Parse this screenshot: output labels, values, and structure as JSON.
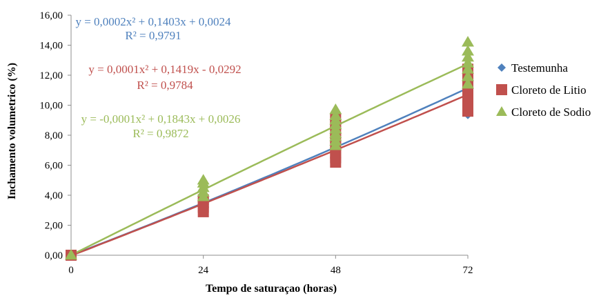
{
  "chart_data": {
    "type": "scatter",
    "xlabel": "Tempo de saturaçao (horas)",
    "ylabel": "Inchamento volumetrico (%)",
    "xlim": [
      0,
      72
    ],
    "ylim": [
      0,
      16
    ],
    "x_ticks": [
      0,
      24,
      48,
      72
    ],
    "y_ticks": [
      0,
      2,
      4,
      6,
      8,
      10,
      12,
      14,
      16
    ],
    "x_tick_labels": [
      "0",
      "24",
      "48",
      "72"
    ],
    "y_tick_labels": [
      "0,00",
      "2,00",
      "4,00",
      "6,00",
      "8,00",
      "10,00",
      "12,00",
      "14,00",
      "16,00"
    ],
    "grid": false,
    "legend_position": "right",
    "series": [
      {
        "name": "Testemunha",
        "color": "#4F81BD",
        "marker": "diamond",
        "points": [
          [
            0,
            0.0
          ],
          [
            24,
            3.4
          ],
          [
            24,
            3.6
          ],
          [
            24,
            3.8
          ],
          [
            24,
            4.0
          ],
          [
            24,
            4.1
          ],
          [
            48,
            6.9
          ],
          [
            48,
            7.4
          ],
          [
            48,
            7.8
          ],
          [
            48,
            8.3
          ],
          [
            48,
            8.6
          ],
          [
            72,
            9.3
          ],
          [
            72,
            10.2
          ],
          [
            72,
            11.0
          ],
          [
            72,
            11.8
          ],
          [
            72,
            12.6
          ],
          [
            72,
            13.0
          ]
        ],
        "trendline": {
          "a": 0.0002,
          "b": 0.1403,
          "c": 0.0024
        },
        "equation": "y = 0,0002x² + 0,1403x + 0,0024",
        "r2": "R² = 0,9791"
      },
      {
        "name": "Cloreto de Litio",
        "color": "#C0504D",
        "marker": "square",
        "points": [
          [
            0,
            0.0
          ],
          [
            24,
            2.9
          ],
          [
            24,
            3.2
          ],
          [
            24,
            3.5
          ],
          [
            24,
            3.7
          ],
          [
            48,
            6.2
          ],
          [
            48,
            6.5
          ],
          [
            48,
            6.8
          ],
          [
            48,
            7.2
          ],
          [
            48,
            7.8
          ],
          [
            48,
            8.3
          ],
          [
            48,
            8.7
          ],
          [
            48,
            9.1
          ],
          [
            72,
            9.6
          ],
          [
            72,
            10.1
          ],
          [
            72,
            10.6
          ],
          [
            72,
            11.0
          ],
          [
            72,
            11.5
          ],
          [
            72,
            12.0
          ],
          [
            72,
            12.4
          ]
        ],
        "trendline": {
          "a": 0.0001,
          "b": 0.1419,
          "c": -0.0292
        },
        "equation": "y = 0,0001x² + 0,1419x - 0,0292",
        "r2": "R² = 0,9784"
      },
      {
        "name": "Cloreto de Sodio",
        "color": "#9BBB59",
        "marker": "triangle",
        "points": [
          [
            0,
            0.0
          ],
          [
            24,
            3.9
          ],
          [
            24,
            4.2
          ],
          [
            24,
            4.5
          ],
          [
            24,
            4.8
          ],
          [
            24,
            5.0
          ],
          [
            48,
            7.3
          ],
          [
            48,
            7.6
          ],
          [
            48,
            7.9
          ],
          [
            48,
            8.1
          ],
          [
            48,
            8.4
          ],
          [
            48,
            8.7
          ],
          [
            48,
            9.0
          ],
          [
            48,
            9.3
          ],
          [
            48,
            9.7
          ],
          [
            72,
            11.4
          ],
          [
            72,
            11.9
          ],
          [
            72,
            12.4
          ],
          [
            72,
            12.8
          ],
          [
            72,
            13.2
          ],
          [
            72,
            13.6
          ],
          [
            72,
            14.2
          ]
        ],
        "trendline": {
          "a": -0.0001,
          "b": 0.1843,
          "c": 0.0026
        },
        "equation": "y = -0,0001x² + 0,1843x + 0,0026",
        "r2": "R² = 0,9872"
      }
    ]
  }
}
